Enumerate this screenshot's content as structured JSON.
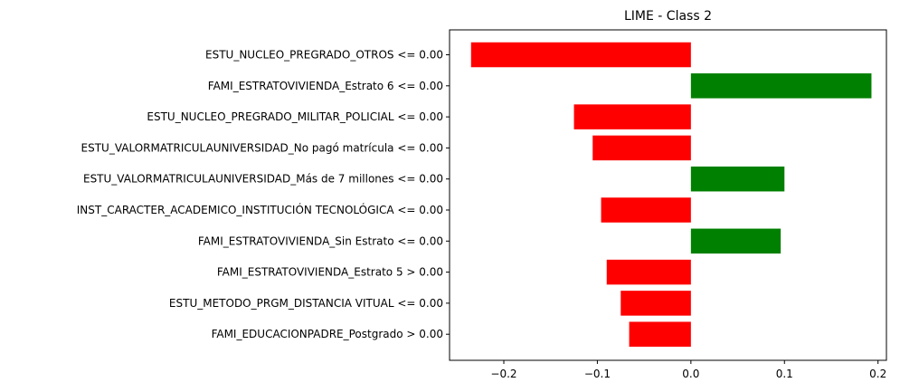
{
  "chart_data": {
    "type": "bar",
    "orientation": "horizontal",
    "title": "LIME - Class 2",
    "xlabel": "",
    "ylabel": "",
    "xlim": [
      -0.258,
      0.209
    ],
    "xticks": [
      -0.2,
      -0.1,
      0.0,
      0.1,
      0.2
    ],
    "xtick_labels": [
      "−0.2",
      "−0.1",
      "0.0",
      "0.1",
      "0.2"
    ],
    "grid": false,
    "positive_color": "#008000",
    "negative_color": "#ff0000",
    "categories": [
      "ESTU_NUCLEO_PREGRADO_OTROS <= 0.00",
      "FAMI_ESTRATOVIVIENDA_Estrato 6 <= 0.00",
      "ESTU_NUCLEO_PREGRADO_MILITAR_POLICIAL <= 0.00",
      "ESTU_VALORMATRICULAUNIVERSIDAD_No pagó matrícula <= 0.00",
      "ESTU_VALORMATRICULAUNIVERSIDAD_Más de 7 millones <= 0.00",
      "INST_CARACTER_ACADEMICO_INSTITUCIÓN TECNOLÓGICA <= 0.00",
      "FAMI_ESTRATOVIVIENDA_Sin Estrato <= 0.00",
      "FAMI_ESTRATOVIVIENDA_Estrato 5 > 0.00",
      "ESTU_METODO_PRGM_DISTANCIA VITUAL <= 0.00",
      "FAMI_EDUCACIONPADRE_Postgrado > 0.00"
    ],
    "values": [
      -0.235,
      0.193,
      -0.125,
      -0.105,
      0.1,
      -0.096,
      0.096,
      -0.09,
      -0.075,
      -0.066
    ]
  }
}
